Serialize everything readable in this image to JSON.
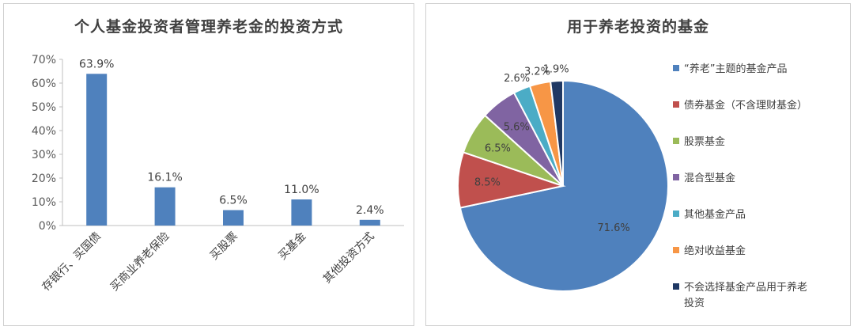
{
  "chart_data": [
    {
      "type": "bar",
      "title": "个人基金投资者管理养老金的投资方式",
      "categories": [
        "存银行、买国债",
        "买商业养老保险",
        "买股票",
        "买基金",
        "其他投资方式"
      ],
      "values": [
        63.9,
        16.1,
        6.5,
        11.0,
        2.4
      ],
      "value_labels": [
        "63.9%",
        "16.1%",
        "6.5%",
        "11.0%",
        "2.4%"
      ],
      "yticks": [
        0,
        10,
        20,
        30,
        40,
        50,
        60,
        70
      ],
      "ytick_labels": [
        "0%",
        "10%",
        "20%",
        "30%",
        "40%",
        "50%",
        "60%",
        "70%"
      ],
      "ylim": [
        0,
        70
      ],
      "color": "#4f81bd",
      "grid": false
    },
    {
      "type": "pie",
      "title": "用于养老投资的基金",
      "legend_position": "right",
      "slices": [
        {
          "label": "“养老”主题的基金产品",
          "value": 71.6,
          "value_label": "71.6%",
          "color": "#4f81bd"
        },
        {
          "label": "债券基金（不含理财基金）",
          "value": 8.5,
          "value_label": "8.5%",
          "color": "#c0504d"
        },
        {
          "label": "股票基金",
          "value": 6.5,
          "value_label": "6.5%",
          "color": "#9bbb59"
        },
        {
          "label": "混合型基金",
          "value": 5.6,
          "value_label": "5.6%",
          "color": "#8064a2"
        },
        {
          "label": "其他基金产品",
          "value": 2.6,
          "value_label": "2.6%",
          "color": "#4bacc6"
        },
        {
          "label": "绝对收益基金",
          "value": 3.2,
          "value_label": "3.2%",
          "color": "#f79646"
        },
        {
          "label": "不会选择基金产品用于养老投资",
          "value": 1.9,
          "value_label": "1.9%",
          "color": "#1f3864"
        }
      ]
    }
  ]
}
